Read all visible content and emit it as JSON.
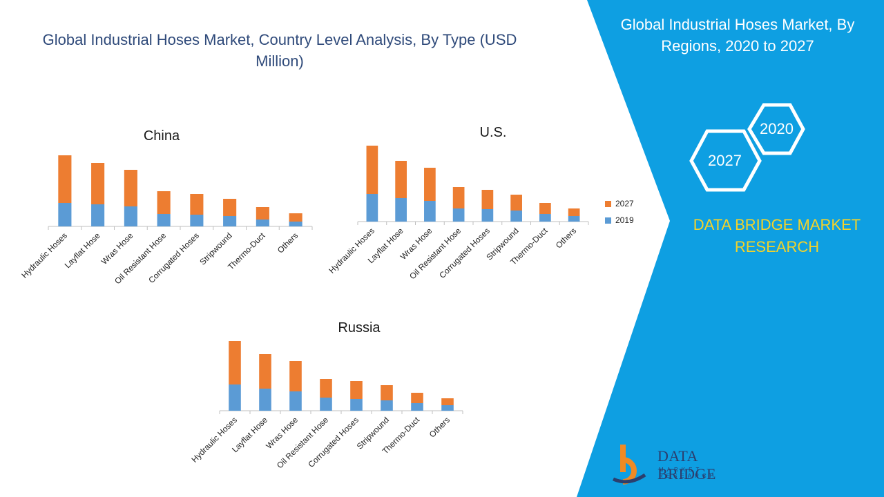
{
  "main_title": "Global Industrial Hoses Market, Country Level Analysis, By Type (USD Million)",
  "right_panel": {
    "title": "Global Industrial Hoses Market, By Regions, 2020 to 2027",
    "hex_2020": "2020",
    "hex_2027": "2027",
    "brand": "DATA BRIDGE MARKET RESEARCH",
    "background_color": "#0e9fe2",
    "accent_yellow": "#f5d328"
  },
  "logo": {
    "name": "DATA BRIDGE",
    "sub": "MARKET RESEARCH"
  },
  "legend": {
    "label_2027": "2027",
    "label_2019": "2019"
  },
  "colors": {
    "series_2019": "#5b9bd5",
    "series_2027": "#ed7d31"
  },
  "chart_data": [
    {
      "type": "bar",
      "stacked": true,
      "title": "China",
      "categories": [
        "Hydraulic Hoses",
        "Layflat Hose",
        "Wras Hose",
        "Oil Resistant Hose",
        "Corrugated Hoses",
        "Stripwound",
        "Thermo-Duct",
        "Others"
      ],
      "series": [
        {
          "name": "2019",
          "values": [
            34,
            32,
            29,
            18,
            17,
            15,
            10,
            7
          ]
        },
        {
          "name": "2027",
          "values": [
            69,
            60,
            53,
            33,
            30,
            25,
            18,
            12
          ]
        }
      ],
      "grid": false
    },
    {
      "type": "bar",
      "stacked": true,
      "title": "U.S.",
      "categories": [
        "Hydraulic Hoses",
        "Layflat Hose",
        "Wras Hose",
        "Oil Resistant Hose",
        "Corrugated Hoses",
        "Stripwound",
        "Thermo-Duct",
        "Others"
      ],
      "series": [
        {
          "name": "2019",
          "values": [
            40,
            34,
            30,
            19,
            18,
            16,
            11,
            8
          ]
        },
        {
          "name": "2027",
          "values": [
            70,
            54,
            48,
            31,
            28,
            23,
            16,
            11
          ]
        }
      ],
      "grid": false,
      "legend": "right"
    },
    {
      "type": "bar",
      "stacked": true,
      "title": "Russia",
      "categories": [
        "Hydraulic Hoses",
        "Layflat Hose",
        "Wras Hose",
        "Oil Resistant Hose",
        "Corrugated Hoses",
        "Stripwound",
        "Thermo-Duct",
        "Others"
      ],
      "series": [
        {
          "name": "2019",
          "values": [
            38,
            32,
            28,
            19,
            17,
            15,
            11,
            8
          ]
        },
        {
          "name": "2027",
          "values": [
            63,
            50,
            44,
            27,
            26,
            22,
            15,
            10
          ]
        }
      ],
      "grid": false
    }
  ]
}
